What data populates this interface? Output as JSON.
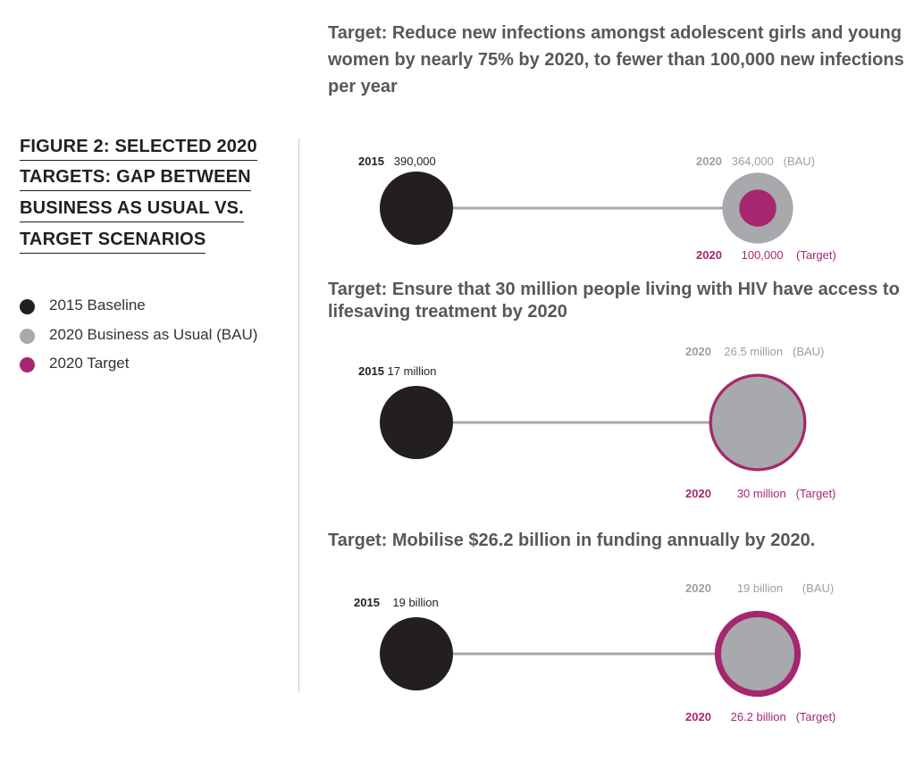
{
  "figure": {
    "title_lines": [
      "FIGURE 2: SELECTED 2020",
      "TARGETS: GAP BETWEEN",
      "BUSINESS AS USUAL VS.",
      "TARGET SCENARIOS"
    ]
  },
  "legend": [
    {
      "label": "2015 Baseline",
      "color": "#231f20"
    },
    {
      "label": "2020 Business as Usual (BAU)",
      "color": "#a7a9ac"
    },
    {
      "label": "2020 Target",
      "color": "#a6276d"
    }
  ],
  "colors": {
    "baseline": "#231f20",
    "bau": "#a7a9ac",
    "target": "#a6276d",
    "line": "#a7a9ac"
  },
  "chart_data": [
    {
      "type": "bubble",
      "title": "Target: Reduce new infections amongst adolescent girls and young women by nearly 75% by 2020, to fewer than 100,000 new infections per year",
      "baseline": {
        "year": "2015",
        "value": 390000,
        "label": "390,000"
      },
      "bau": {
        "year": "2020",
        "value": 364000,
        "label": "364,000",
        "tag": "(BAU)"
      },
      "target": {
        "year": "2020",
        "value": 100000,
        "label": "100,000",
        "tag": "(Target)"
      }
    },
    {
      "type": "bubble",
      "title": "Target: Ensure that 30 million people living with HIV have access to lifesaving treatment by 2020",
      "baseline": {
        "year": "2015",
        "value": 17,
        "label": "17 million"
      },
      "bau": {
        "year": "2020",
        "value": 26.5,
        "label": "26.5 million",
        "tag": "(BAU)"
      },
      "target": {
        "year": "2020",
        "value": 30,
        "label": "30 million",
        "tag": "(Target)"
      }
    },
    {
      "type": "bubble",
      "title": "Target: Mobilise $26.2 billion in funding annually by 2020.",
      "baseline": {
        "year": "2015",
        "value": 19,
        "label": "19 billion"
      },
      "bau": {
        "year": "2020",
        "value": 19,
        "label": "19 billion",
        "tag": "(BAU)"
      },
      "target": {
        "year": "2020",
        "value": 26.2,
        "label": "26.2 billion",
        "tag": "(Target)"
      }
    }
  ]
}
